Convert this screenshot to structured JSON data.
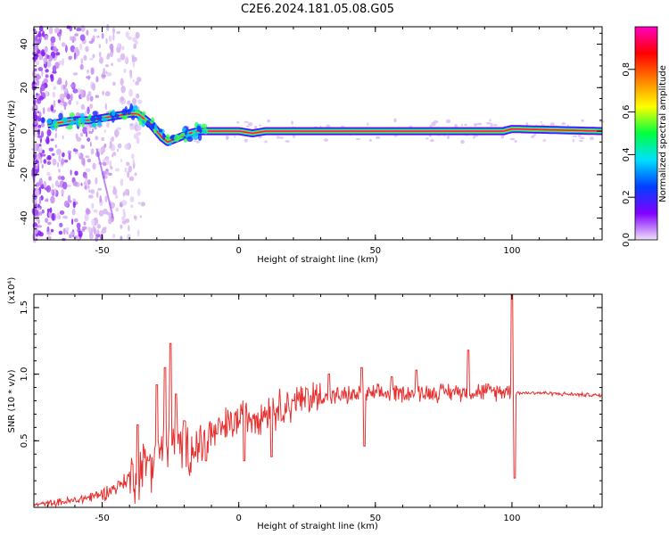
{
  "title": "C2E6.2024.181.05.08.G05",
  "chart_data": [
    {
      "type": "heatmap",
      "xlabel": "Height of straight line (km)",
      "ylabel": "Frequency (Hz)",
      "xlim": [
        -75,
        133
      ],
      "ylim": [
        -50,
        48
      ],
      "x_ticks": [
        -50,
        0,
        50,
        100
      ],
      "y_ticks": [
        -40,
        -20,
        0,
        20,
        40
      ],
      "colorbar": {
        "label": "Normalized spectral amplitude",
        "range": [
          0,
          1
        ],
        "ticks": [
          0.0,
          0.2,
          0.4,
          0.6,
          0.8
        ],
        "colormap": [
          "#f0e0f8",
          "#8000ff",
          "#0040ff",
          "#00e0ff",
          "#00ff40",
          "#ffff00",
          "#ff8000",
          "#ff0000",
          "#ff00c0"
        ]
      },
      "ridge": {
        "x": [
          -70,
          -65,
          -60,
          -55,
          -50,
          -45,
          -40,
          -37,
          -35,
          -32,
          -30,
          -28,
          -26,
          -24,
          -22,
          -20,
          -18,
          -15,
          -10,
          0,
          5,
          10,
          40,
          97,
          100,
          133
        ],
        "y": [
          3,
          4,
          5,
          5,
          6,
          7,
          8,
          8,
          6,
          3,
          0,
          -3,
          -5,
          -4,
          -3,
          -2,
          -1,
          0,
          0,
          0,
          -1,
          0,
          0,
          0,
          1,
          0
        ]
      },
      "grid": false
    },
    {
      "type": "line",
      "xlabel": "Height of straight line (km)",
      "ylabel": "SNR (10 * v/v)",
      "y_scale_label": "(x10⁴)",
      "xlim": [
        -75,
        133
      ],
      "ylim": [
        0,
        1.6
      ],
      "x_ticks": [
        -50,
        0,
        50,
        100
      ],
      "y_ticks": [
        0.5,
        1.0,
        1.5
      ],
      "color": "#e83030",
      "profile": {
        "x": [
          -75,
          -60,
          -50,
          -45,
          -40,
          -35,
          -30,
          -25,
          -20,
          -15,
          -10,
          -5,
          0,
          10,
          20,
          30,
          40,
          50,
          60,
          70,
          80,
          90,
          95,
          98,
          100,
          102,
          105,
          110,
          120,
          133
        ],
        "y": [
          0.02,
          0.05,
          0.1,
          0.15,
          0.22,
          0.3,
          0.4,
          0.45,
          0.42,
          0.46,
          0.55,
          0.6,
          0.66,
          0.72,
          0.78,
          0.83,
          0.84,
          0.85,
          0.86,
          0.86,
          0.87,
          0.87,
          0.87,
          0.88,
          0.85,
          0.86,
          0.86,
          0.86,
          0.85,
          0.84
        ]
      },
      "spikes": [
        {
          "x": -37,
          "y": 0.62
        },
        {
          "x": -33,
          "y": 0.35
        },
        {
          "x": -30,
          "y": 0.92
        },
        {
          "x": -27,
          "y": 1.05
        },
        {
          "x": -25,
          "y": 1.23
        },
        {
          "x": -23,
          "y": 0.85
        },
        {
          "x": -20,
          "y": 0.65
        },
        {
          "x": -12,
          "y": 0.35
        },
        {
          "x": -8,
          "y": 0.55
        },
        {
          "x": 2,
          "y": 0.35
        },
        {
          "x": 12,
          "y": 0.38
        },
        {
          "x": 20,
          "y": 0.8
        },
        {
          "x": 25,
          "y": 0.89
        },
        {
          "x": 33,
          "y": 1.0
        },
        {
          "x": 45,
          "y": 1.05
        },
        {
          "x": 46,
          "y": 0.46
        },
        {
          "x": 56,
          "y": 0.98
        },
        {
          "x": 65,
          "y": 1.03
        },
        {
          "x": 84,
          "y": 1.18
        },
        {
          "x": 100,
          "y": 1.6
        },
        {
          "x": 101,
          "y": 0.22
        }
      ]
    }
  ]
}
